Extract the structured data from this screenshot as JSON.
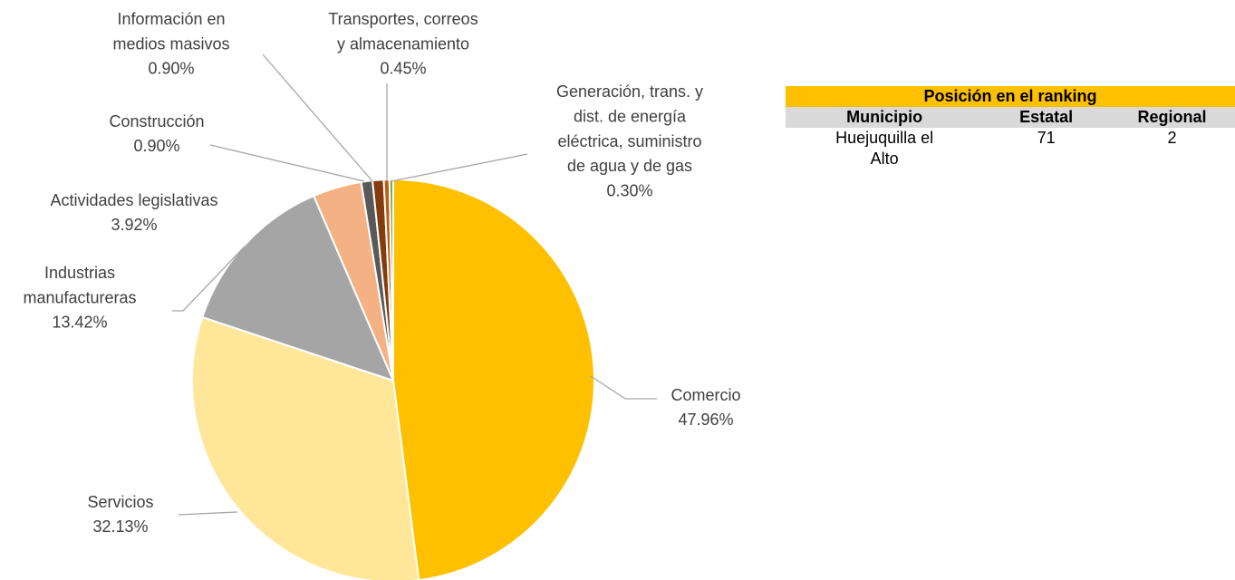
{
  "chart_data": {
    "type": "pie",
    "categories": [
      "Comercio",
      "Servicios",
      "Industrias\nmanufactureras",
      "Actividades legislativas",
      "Construcción",
      "Información en\nmedios masivos",
      "Transportes, correos\ny almacenamiento",
      "Generación, trans. y\ndist. de energía\neléctrica, suministro\nde agua y de gas"
    ],
    "values": [
      47.96,
      32.13,
      13.42,
      3.92,
      0.9,
      0.9,
      0.45,
      0.3
    ],
    "value_labels": [
      "47.96%",
      "32.13%",
      "13.42%",
      "3.92%",
      "0.90%",
      "0.90%",
      "0.45%",
      "0.30%"
    ],
    "colors": [
      "#ffc000",
      "#ffe699",
      "#a5a5a5",
      "#f4b183",
      "#595959",
      "#843c0c",
      "#c55a11",
      "#70ad47"
    ]
  },
  "table": {
    "title": "Posición en el ranking",
    "header": [
      "Municipio",
      "Estatal",
      "Regional"
    ],
    "rows": [
      [
        "Huejuquilla el Alto",
        "71",
        "2"
      ]
    ]
  }
}
